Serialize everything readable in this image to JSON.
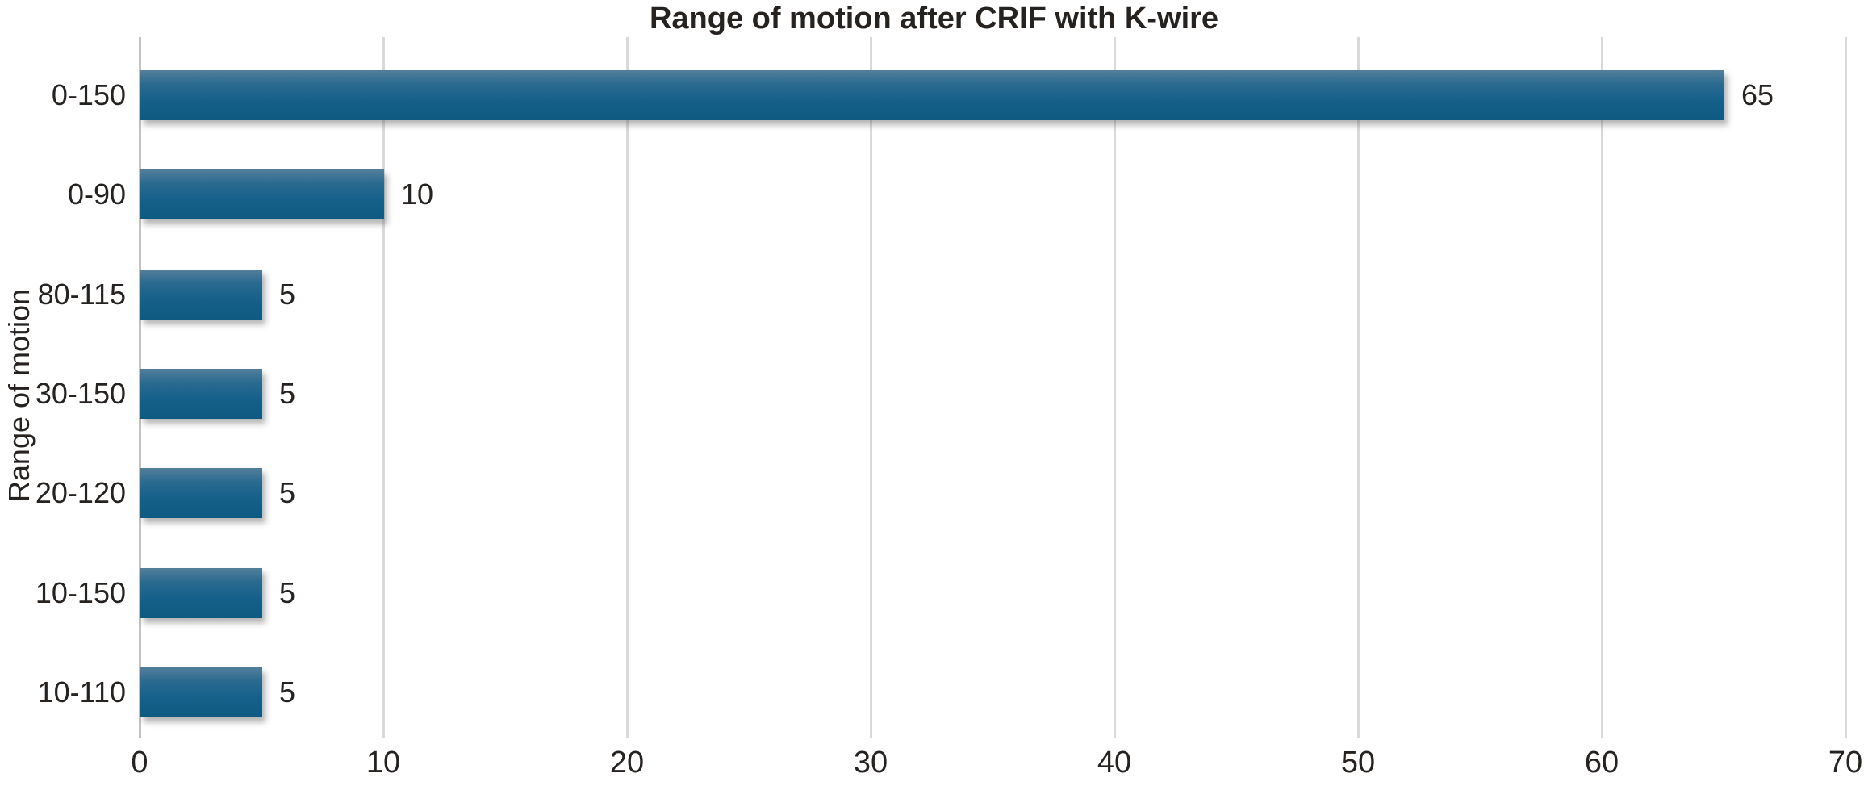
{
  "chart_data": {
    "type": "bar",
    "orientation": "horizontal",
    "title": "Range of motion after CRIF with K-wire",
    "ylabel": "Range of motion",
    "xlabel": "",
    "categories": [
      "0-150",
      "0-90",
      "80-115",
      "30-150",
      "20-120",
      "10-150",
      "10-110"
    ],
    "values": [
      65,
      10,
      5,
      5,
      5,
      5,
      5
    ],
    "value_labels": [
      "65",
      "10",
      "5",
      "5",
      "5",
      "5",
      "5"
    ],
    "xlim": [
      0,
      70
    ],
    "xticks": [
      "0",
      "10",
      "20",
      "30",
      "40",
      "50",
      "60",
      "70"
    ],
    "grid": "vertical-gridlines-on",
    "legend": "none",
    "colors": {
      "bar_gradient_top": "#537f9b",
      "bar_gradient_mid": "#14608a",
      "bar_gradient_bottom": "#0e5a81",
      "gridline": "#d9d9d9",
      "axis_line": "#c3c3c3",
      "text": "#262220",
      "background": "#ffffff"
    }
  }
}
